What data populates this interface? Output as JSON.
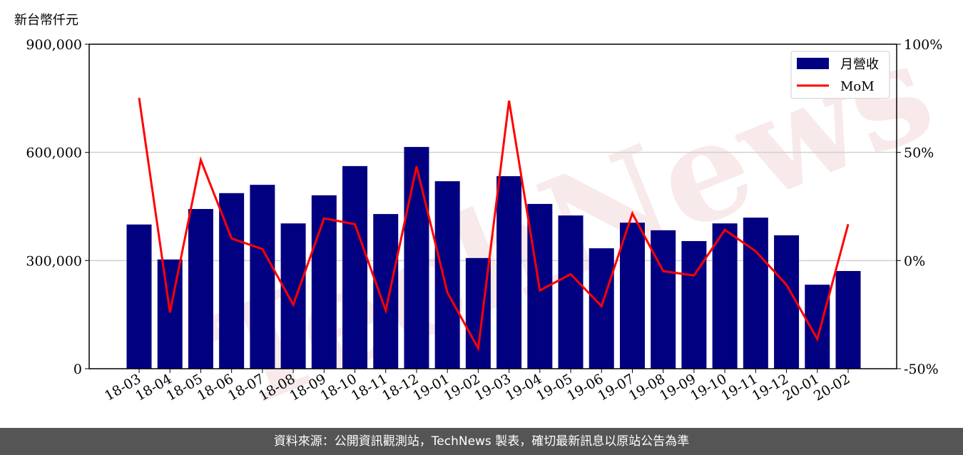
{
  "chart_data": {
    "type": "bar+line",
    "y_left_label": "新台幣仟元",
    "y_left_lim": [
      0,
      900000
    ],
    "y_left_ticks": [
      "0",
      "300,000",
      "600,000",
      "900,000"
    ],
    "y_left_tick_values": [
      0,
      300000,
      600000,
      900000
    ],
    "y_right_lim": [
      -50,
      100
    ],
    "y_right_ticks": [
      "-50%",
      "0%",
      "50%",
      "100%"
    ],
    "y_right_tick_values": [
      -50,
      0,
      50,
      100
    ],
    "grid": "horizontal",
    "legend_position": "top-right",
    "categories": [
      "18-03",
      "18-04",
      "18-05",
      "18-06",
      "18-07",
      "18-08",
      "18-09",
      "18-10",
      "18-11",
      "18-12",
      "19-01",
      "19-02",
      "19-03",
      "19-04",
      "19-05",
      "19-06",
      "19-07",
      "19-08",
      "19-09",
      "19-10",
      "19-11",
      "19-12",
      "20-01",
      "20-02"
    ],
    "series": [
      {
        "name": "月營收",
        "type": "bar",
        "axis": "left",
        "color": "#000080",
        "values": [
          400000,
          303000,
          443000,
          487000,
          510000,
          403000,
          481000,
          562000,
          429000,
          615000,
          520000,
          307000,
          534000,
          457000,
          425000,
          334000,
          405000,
          384000,
          354000,
          403000,
          419000,
          370000,
          233000,
          271000
        ]
      },
      {
        "name": "MoM",
        "type": "line",
        "axis": "right",
        "unit": "%",
        "color": "#ff0000",
        "values": [
          75.2,
          -24.0,
          46.5,
          10.2,
          5.3,
          -20.4,
          19.5,
          16.8,
          -23.1,
          43.5,
          -14.8,
          -40.6,
          73.9,
          -13.8,
          -6.3,
          -21.1,
          21.8,
          -4.9,
          -6.9,
          14.2,
          4.3,
          -11.2,
          -36.3,
          16.8
        ]
      }
    ]
  },
  "watermark": "TechNews",
  "footer": {
    "source_text": "資料來源：公開資訊觀測站，TechNews 製表，確切最新訊息以原站公告為準"
  }
}
